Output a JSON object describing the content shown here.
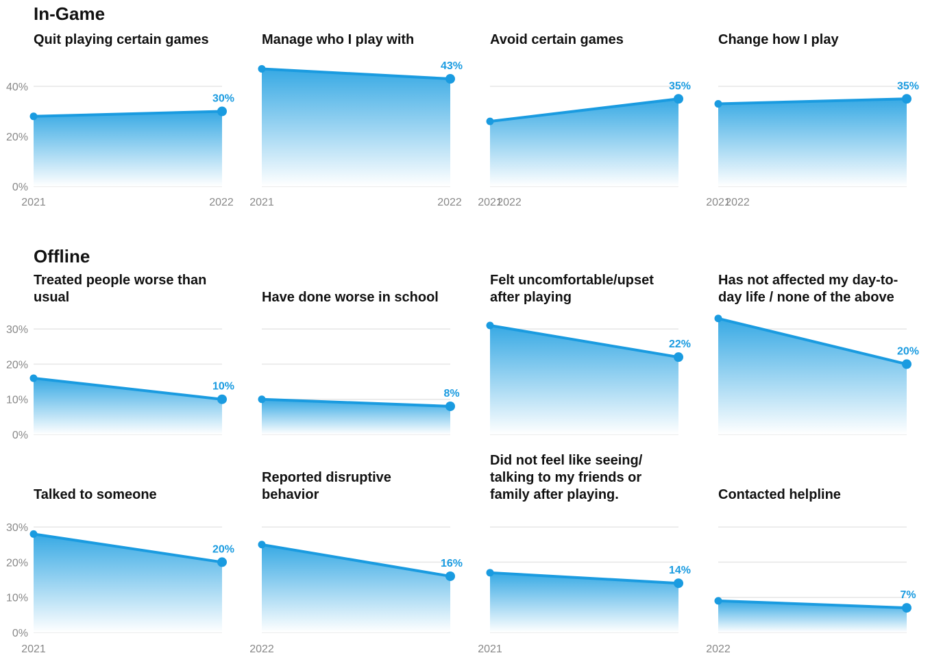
{
  "headings": [
    "In-Game",
    "Offline"
  ],
  "chart_data": [
    {
      "type": "area",
      "title": [
        "Quit playing certain games"
      ],
      "x": [
        "2021",
        "2022"
      ],
      "values": [
        28,
        30
      ],
      "value_labels": [
        null,
        "30%"
      ],
      "ylim": [
        0,
        50
      ],
      "yticks": [
        {
          "value": 0,
          "label": "0%"
        },
        {
          "value": 20,
          "label": "20%"
        },
        {
          "value": 40,
          "label": "40%"
        }
      ],
      "color": "#1a9be0"
    },
    {
      "type": "area",
      "title": [
        "Manage who I play with"
      ],
      "x": [
        "2021",
        "2022"
      ],
      "values": [
        47,
        43
      ],
      "value_labels": [
        null,
        "43%"
      ],
      "ylim": [
        0,
        50
      ],
      "yticks": [
        0,
        20,
        40
      ],
      "color": "#1a9be0"
    },
    {
      "type": "area",
      "title": [
        "Avoid certain games"
      ],
      "x": [
        "2021",
        "2022"
      ],
      "values": [
        26,
        35
      ],
      "value_labels": [
        null,
        "35%"
      ],
      "ylim": [
        0,
        50
      ],
      "yticks": [
        0,
        20,
        40
      ],
      "color": "#1a9be0"
    },
    {
      "type": "area",
      "title": [
        "Change how I play"
      ],
      "x": [
        "2021",
        "2022"
      ],
      "values": [
        33,
        35
      ],
      "value_labels": [
        null,
        "35%"
      ],
      "ylim": [
        0,
        50
      ],
      "yticks": [
        0,
        20,
        40
      ],
      "color": "#1a9be0"
    },
    {
      "type": "area",
      "title": [
        "Treated people worse than",
        "usual"
      ],
      "x": [
        null,
        null
      ],
      "values": [
        16,
        10
      ],
      "value_labels": [
        null,
        "10%"
      ],
      "ylim": [
        0,
        35
      ],
      "yticks": [
        {
          "value": 0,
          "label": "0%"
        },
        {
          "value": 10,
          "label": "10%"
        },
        {
          "value": 20,
          "label": "20%"
        },
        {
          "value": 30,
          "label": "30%"
        }
      ],
      "color": "#1a9be0"
    },
    {
      "type": "area",
      "title": [
        "Have done worse in school"
      ],
      "x": [
        null,
        null
      ],
      "values": [
        10,
        8
      ],
      "value_labels": [
        null,
        "8%"
      ],
      "ylim": [
        0,
        35
      ],
      "yticks": [
        0,
        10,
        20,
        30
      ],
      "color": "#1a9be0"
    },
    {
      "type": "area",
      "title": [
        "Felt uncomfortable/upset",
        "after playing"
      ],
      "x": [
        null,
        null
      ],
      "values": [
        31,
        22
      ],
      "value_labels": [
        null,
        "22%"
      ],
      "ylim": [
        0,
        35
      ],
      "yticks": [
        0,
        10,
        20,
        30
      ],
      "color": "#1a9be0"
    },
    {
      "type": "area",
      "title": [
        "Has not affected my day-to-",
        "day life / none of the above"
      ],
      "x": [
        null,
        null
      ],
      "values": [
        33,
        20
      ],
      "value_labels": [
        null,
        "20%"
      ],
      "ylim": [
        0,
        35
      ],
      "yticks": [
        0,
        10,
        20,
        30
      ],
      "color": "#1a9be0"
    },
    {
      "type": "area",
      "title": [
        "Talked to someone"
      ],
      "x": [
        "2021",
        null
      ],
      "values": [
        28,
        20
      ],
      "value_labels": [
        null,
        "20%"
      ],
      "ylim": [
        0,
        35
      ],
      "yticks": [
        {
          "value": 0,
          "label": "0%"
        },
        {
          "value": 10,
          "label": "10%"
        },
        {
          "value": 20,
          "label": "20%"
        },
        {
          "value": 30,
          "label": "30%"
        }
      ],
      "color": "#1a9be0"
    },
    {
      "type": "area",
      "title": [
        "Reported disruptive",
        "behavior"
      ],
      "x": [
        "2022",
        null
      ],
      "values": [
        25,
        16
      ],
      "value_labels": [
        null,
        "16%"
      ],
      "ylim": [
        0,
        35
      ],
      "yticks": [
        0,
        10,
        20,
        30
      ],
      "color": "#1a9be0"
    },
    {
      "type": "area",
      "title": [
        "Did not feel like seeing/",
        "talking to my friends or",
        "family after playing."
      ],
      "x": [
        "2021",
        null
      ],
      "values": [
        17,
        14
      ],
      "value_labels": [
        null,
        "14%"
      ],
      "ylim": [
        0,
        35
      ],
      "yticks": [
        0,
        10,
        20,
        30
      ],
      "color": "#1a9be0"
    },
    {
      "type": "area",
      "title": [
        "Contacted helpline"
      ],
      "x": [
        "2022",
        null
      ],
      "values": [
        9,
        7
      ],
      "value_labels": [
        null,
        "7%"
      ],
      "ylim": [
        0,
        35
      ],
      "yticks": [
        0,
        10,
        20,
        30
      ],
      "color": "#1a9be0"
    }
  ]
}
